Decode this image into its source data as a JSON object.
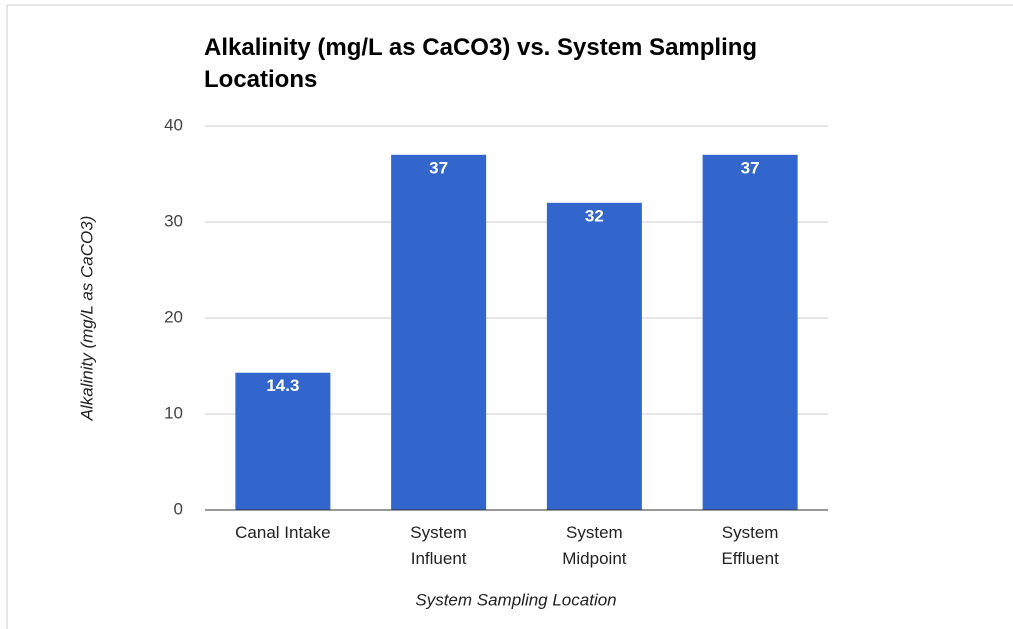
{
  "chart_data": {
    "type": "bar",
    "title": "Alkalinity (mg/L as CaCO3) vs. System Sampling Locations",
    "x_label": "System Sampling Location",
    "y_label": "Alkalinity (mg/L as CaCO3)",
    "categories": [
      "Canal Intake",
      "System Influent",
      "System Midpoint",
      "System Effluent"
    ],
    "values": [
      14.3,
      37,
      32,
      37
    ],
    "color": "#3366cc",
    "ylim": [
      0,
      40
    ],
    "yticks": [
      0,
      10,
      20,
      30,
      40
    ],
    "grid": true
  }
}
